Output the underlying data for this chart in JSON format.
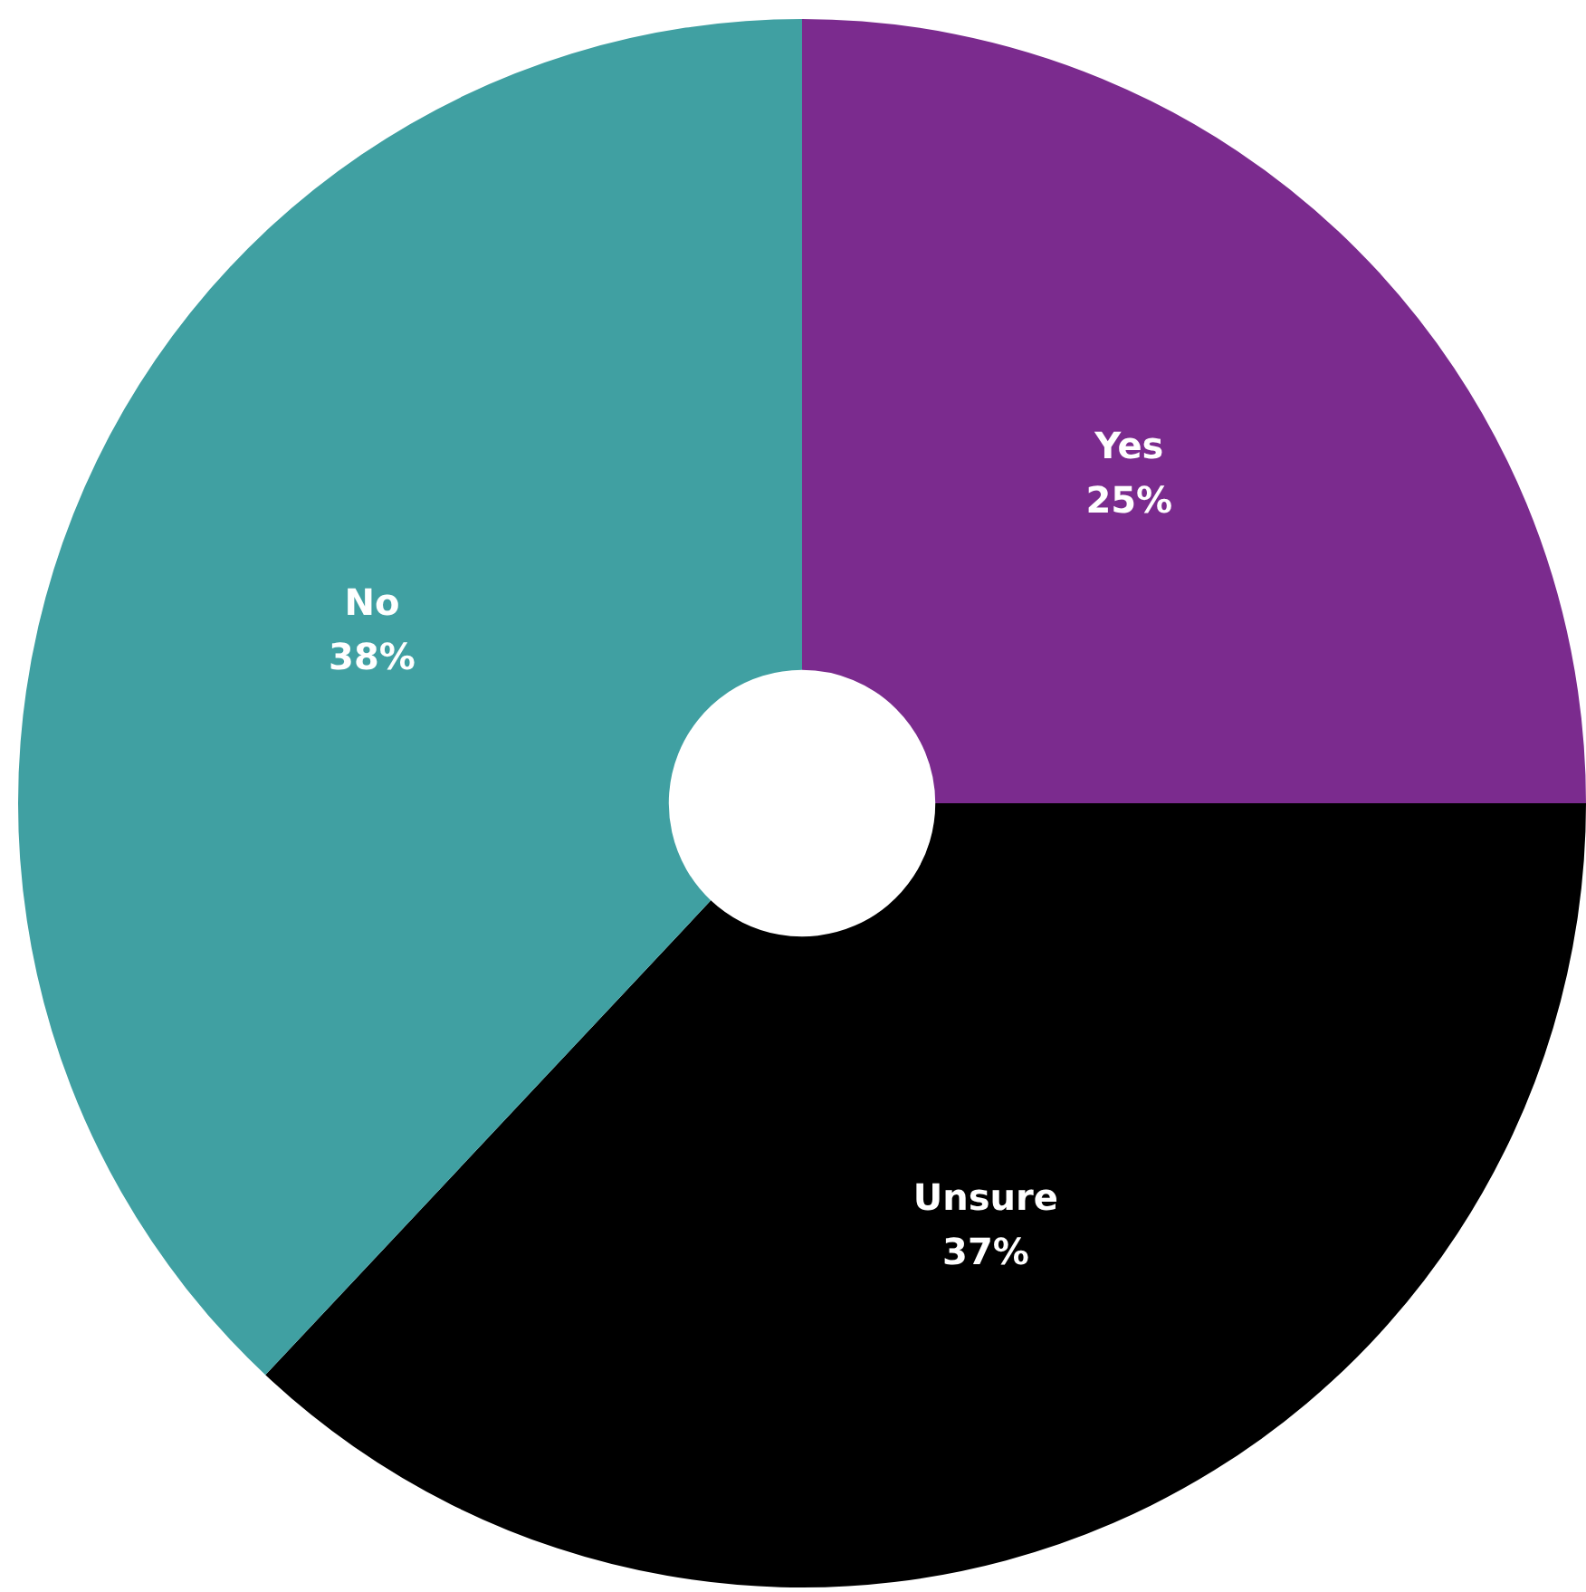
{
  "chart_data": {
    "type": "donut",
    "categories": [
      "Yes",
      "Unsure",
      "No"
    ],
    "values": [
      25,
      37,
      38
    ],
    "colors": [
      "#7b2b8e",
      "#000000",
      "#40a0a2"
    ],
    "value_labels": [
      "25%",
      "37%",
      "38%"
    ],
    "legend": false
  }
}
